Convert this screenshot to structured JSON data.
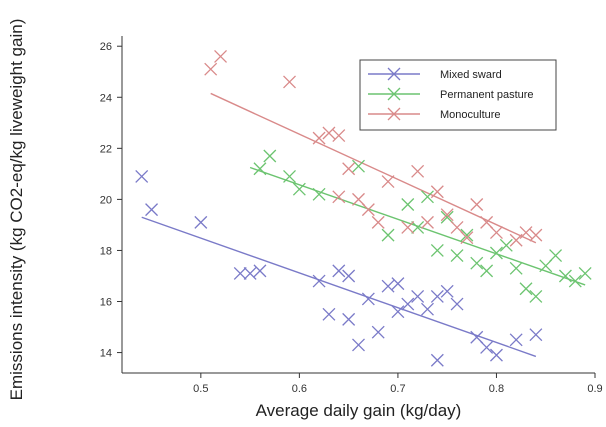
{
  "chart_data": {
    "type": "scatter",
    "title": "",
    "xlabel": "Average daily gain (kg/day)",
    "ylabel": "Emissions intensity (kg CO2-eq/kg liveweight gain)",
    "xlim": [
      0.42,
      0.9
    ],
    "ylim": [
      13.2,
      26.4
    ],
    "xticks": [
      0.5,
      0.6,
      0.7,
      0.8,
      0.9
    ],
    "xtick_labels": [
      "0.5",
      "0.6",
      "0.7",
      "0.8",
      "0.9"
    ],
    "yticks": [
      14,
      16,
      18,
      20,
      22,
      24,
      26
    ],
    "ytick_labels": [
      "14",
      "16",
      "18",
      "20",
      "22",
      "24",
      "26"
    ],
    "grid": false,
    "legend_position": "top-right",
    "series": [
      {
        "name": "Mixed sward",
        "color": "#7a7ac8",
        "marker": "x",
        "points": [
          [
            0.44,
            20.9
          ],
          [
            0.45,
            19.6
          ],
          [
            0.5,
            19.1
          ],
          [
            0.54,
            17.1
          ],
          [
            0.55,
            17.1
          ],
          [
            0.56,
            17.2
          ],
          [
            0.62,
            16.8
          ],
          [
            0.63,
            15.5
          ],
          [
            0.64,
            17.2
          ],
          [
            0.65,
            17.0
          ],
          [
            0.65,
            15.3
          ],
          [
            0.66,
            14.3
          ],
          [
            0.67,
            16.1
          ],
          [
            0.68,
            14.8
          ],
          [
            0.69,
            16.6
          ],
          [
            0.7,
            16.7
          ],
          [
            0.7,
            15.6
          ],
          [
            0.71,
            15.9
          ],
          [
            0.72,
            16.2
          ],
          [
            0.73,
            15.7
          ],
          [
            0.74,
            16.2
          ],
          [
            0.75,
            16.4
          ],
          [
            0.76,
            15.9
          ],
          [
            0.74,
            13.7
          ],
          [
            0.78,
            14.6
          ],
          [
            0.79,
            14.2
          ],
          [
            0.8,
            13.9
          ],
          [
            0.82,
            14.5
          ],
          [
            0.84,
            14.7
          ]
        ],
        "trend": [
          [
            0.44,
            19.3
          ],
          [
            0.84,
            13.85
          ]
        ]
      },
      {
        "name": "Permanent pasture",
        "color": "#6cc470",
        "marker": "x",
        "points": [
          [
            0.56,
            21.2
          ],
          [
            0.57,
            21.7
          ],
          [
            0.59,
            20.9
          ],
          [
            0.6,
            20.4
          ],
          [
            0.62,
            20.2
          ],
          [
            0.66,
            21.3
          ],
          [
            0.69,
            18.6
          ],
          [
            0.71,
            19.8
          ],
          [
            0.72,
            18.9
          ],
          [
            0.73,
            20.1
          ],
          [
            0.74,
            18.0
          ],
          [
            0.75,
            19.3
          ],
          [
            0.76,
            17.8
          ],
          [
            0.77,
            18.6
          ],
          [
            0.78,
            17.5
          ],
          [
            0.79,
            17.2
          ],
          [
            0.8,
            17.9
          ],
          [
            0.81,
            18.2
          ],
          [
            0.82,
            17.3
          ],
          [
            0.83,
            16.5
          ],
          [
            0.84,
            16.2
          ],
          [
            0.85,
            17.4
          ],
          [
            0.86,
            17.8
          ],
          [
            0.87,
            17.0
          ],
          [
            0.88,
            16.8
          ],
          [
            0.89,
            17.1
          ]
        ],
        "trend": [
          [
            0.55,
            21.25
          ],
          [
            0.89,
            16.65
          ]
        ]
      },
      {
        "name": "Monoculture",
        "color": "#d98a8a",
        "marker": "x",
        "points": [
          [
            0.51,
            25.1
          ],
          [
            0.52,
            25.6
          ],
          [
            0.59,
            24.6
          ],
          [
            0.62,
            22.4
          ],
          [
            0.63,
            22.6
          ],
          [
            0.64,
            22.5
          ],
          [
            0.65,
            21.2
          ],
          [
            0.64,
            20.1
          ],
          [
            0.66,
            20.0
          ],
          [
            0.67,
            19.6
          ],
          [
            0.68,
            19.1
          ],
          [
            0.69,
            20.7
          ],
          [
            0.71,
            18.9
          ],
          [
            0.72,
            21.1
          ],
          [
            0.73,
            19.1
          ],
          [
            0.74,
            20.3
          ],
          [
            0.75,
            19.4
          ],
          [
            0.76,
            18.9
          ],
          [
            0.77,
            18.5
          ],
          [
            0.78,
            19.8
          ],
          [
            0.79,
            19.1
          ],
          [
            0.8,
            18.7
          ],
          [
            0.82,
            18.4
          ],
          [
            0.83,
            18.7
          ],
          [
            0.84,
            18.6
          ]
        ],
        "trend": [
          [
            0.51,
            24.15
          ],
          [
            0.84,
            18.3
          ]
        ]
      }
    ]
  }
}
